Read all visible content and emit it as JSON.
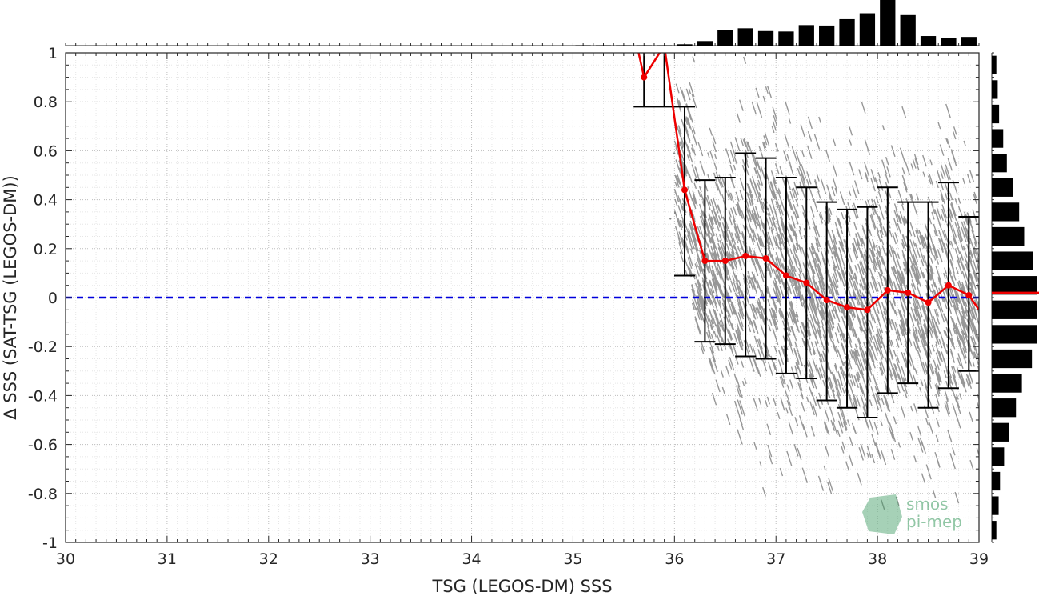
{
  "chart_data": {
    "type": "scatter",
    "xlabel": "TSG (LEGOS-DM) SSS",
    "ylabel": "Δ SSS (SAT-TSG (LEGOS-DM))",
    "xlim": [
      30,
      39
    ],
    "ylim": [
      -1,
      1
    ],
    "x_ticks": [
      "30",
      "31",
      "32",
      "33",
      "34",
      "35",
      "36",
      "37",
      "38",
      "39"
    ],
    "y_ticks": [
      "-1",
      "-0.8",
      "-0.6",
      "-0.4",
      "-0.2",
      "0",
      "0.2",
      "0.4",
      "0.6",
      "0.8",
      "1"
    ],
    "grid": true,
    "zero_line": {
      "y": 0,
      "color": "#0000dd",
      "style": "dashed"
    },
    "colors": {
      "scatter": "#808080",
      "mean_line": "#ee0000",
      "error_bars": "#000000",
      "histogram": "#000000"
    },
    "binned_stats": {
      "x": [
        35.7,
        35.9,
        36.1,
        36.3,
        36.5,
        36.7,
        36.9,
        37.1,
        37.3,
        37.5,
        37.7,
        37.9,
        38.1,
        38.3,
        38.5,
        38.7,
        38.9
      ],
      "mean": [
        0.9,
        1.03,
        0.44,
        0.15,
        0.15,
        0.17,
        0.16,
        0.09,
        0.06,
        -0.01,
        -0.04,
        -0.05,
        0.03,
        0.02,
        -0.02,
        0.05,
        0.01
      ],
      "lower": [
        0.78,
        0.78,
        0.09,
        -0.18,
        -0.19,
        -0.24,
        -0.25,
        -0.31,
        -0.33,
        -0.42,
        -0.45,
        -0.49,
        -0.39,
        -0.35,
        -0.45,
        -0.37,
        -0.3
      ],
      "upper": [
        1.1,
        1.1,
        0.78,
        0.48,
        0.49,
        0.59,
        0.57,
        0.49,
        0.45,
        0.39,
        0.36,
        0.37,
        0.45,
        0.39,
        0.39,
        0.47,
        0.33
      ]
    },
    "top_histogram": {
      "x": [
        35.1,
        35.3,
        35.5,
        35.7,
        35.9,
        36.1,
        36.3,
        36.5,
        36.7,
        36.9,
        37.1,
        37.3,
        37.5,
        37.7,
        37.9,
        38.1,
        38.3,
        38.5,
        38.7,
        38.9
      ],
      "relative_counts": [
        0.01,
        0.01,
        0.01,
        0.01,
        0.01,
        0.03,
        0.1,
        0.34,
        0.38,
        0.32,
        0.31,
        0.45,
        0.44,
        0.58,
        0.71,
        1.0,
        0.67,
        0.21,
        0.16,
        0.19
      ]
    },
    "right_histogram": {
      "y": [
        0.95,
        0.85,
        0.75,
        0.65,
        0.55,
        0.45,
        0.35,
        0.25,
        0.15,
        0.05,
        -0.05,
        -0.15,
        -0.25,
        -0.35,
        -0.45,
        -0.55,
        -0.65,
        -0.75,
        -0.85,
        -0.95
      ],
      "relative_counts": [
        0.1,
        0.13,
        0.16,
        0.25,
        0.33,
        0.46,
        0.6,
        0.71,
        0.91,
        1.0,
        0.99,
        1.0,
        0.88,
        0.66,
        0.53,
        0.38,
        0.27,
        0.18,
        0.15,
        0.1
      ],
      "median_line_y": 0.02
    },
    "logo": {
      "line1": "smos",
      "line2": "pi-mep"
    }
  }
}
